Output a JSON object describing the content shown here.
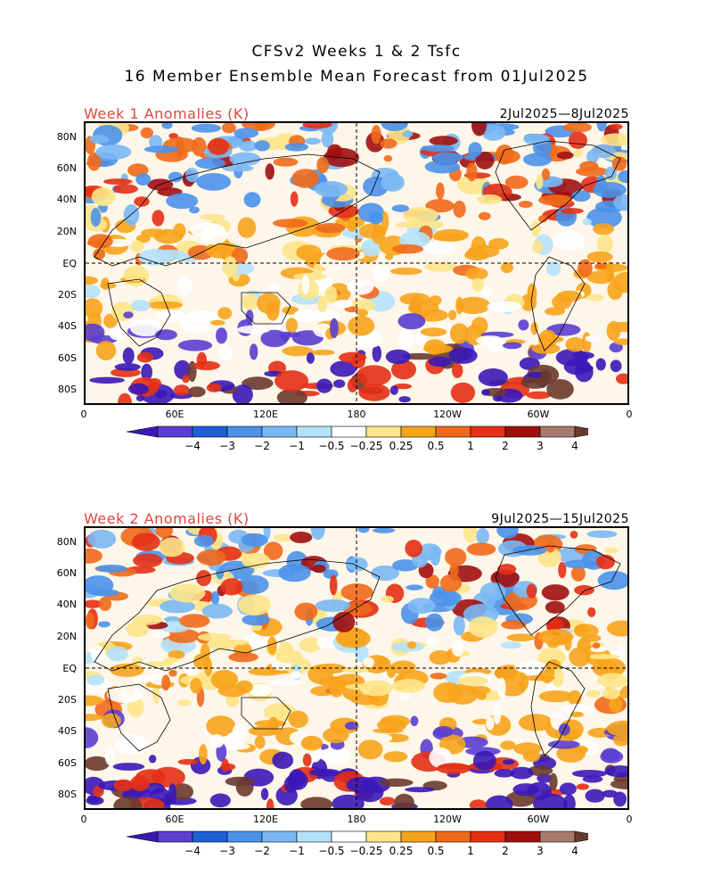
{
  "title_line1": "CFSv2 Weeks 1 & 2 Tsfc",
  "title_line2": "16 Member Ensemble Mean Forecast from 01Jul2025",
  "panels": [
    {
      "label": "Week 1 Anomalies (K)",
      "dates": "2Jul2025—8Jul2025"
    },
    {
      "label": "Week 2 Anomalies (K)",
      "dates": "9Jul2025—15Jul2025"
    }
  ],
  "lat_labels": [
    "80N",
    "60N",
    "40N",
    "20N",
    "EQ",
    "20S",
    "40S",
    "60S",
    "80S"
  ],
  "lon_labels": [
    "0",
    "60E",
    "120E",
    "180",
    "120W",
    "60W",
    "0"
  ],
  "colorbar": {
    "labels": [
      "−4",
      "−3",
      "−2",
      "−1",
      "−0.5",
      "−0.25",
      "0.25",
      "0.5",
      "1",
      "2",
      "3",
      "4"
    ],
    "colors": [
      "#3a18b8",
      "#5a3fd0",
      "#1f5fd8",
      "#4a92ea",
      "#7ab8f4",
      "#b4e2fa",
      "#ffffff",
      "#fde68a",
      "#f7a41c",
      "#f06a1a",
      "#e43015",
      "#a00f0f",
      "#a77a6e",
      "#6b3a2e"
    ]
  }
}
